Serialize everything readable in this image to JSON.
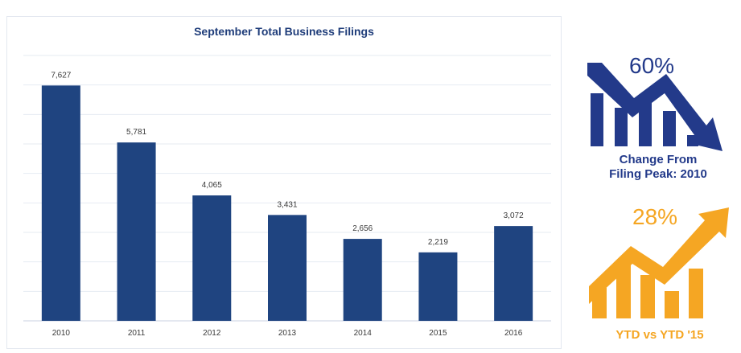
{
  "chart_data": {
    "type": "bar",
    "title": "September Total Business Filings",
    "categories": [
      "2010",
      "2011",
      "2012",
      "2013",
      "2014",
      "2015",
      "2016"
    ],
    "values": [
      7627,
      5781,
      4065,
      3431,
      2656,
      2219,
      3072
    ],
    "data_labels": [
      "7,627",
      "5,781",
      "4,065",
      "3,431",
      "2,656",
      "2,219",
      "3,072"
    ],
    "ylim": [
      0,
      8600
    ],
    "grid": true,
    "bar_color": "#1f4480"
  },
  "stats": {
    "change": {
      "value": "60%",
      "caption_line1": "Change From",
      "caption_line2": "Filing Peak: 2010",
      "color": "#233a8a"
    },
    "ytd": {
      "value": "28%",
      "caption": "YTD vs YTD '15",
      "color": "#f5a623"
    }
  }
}
